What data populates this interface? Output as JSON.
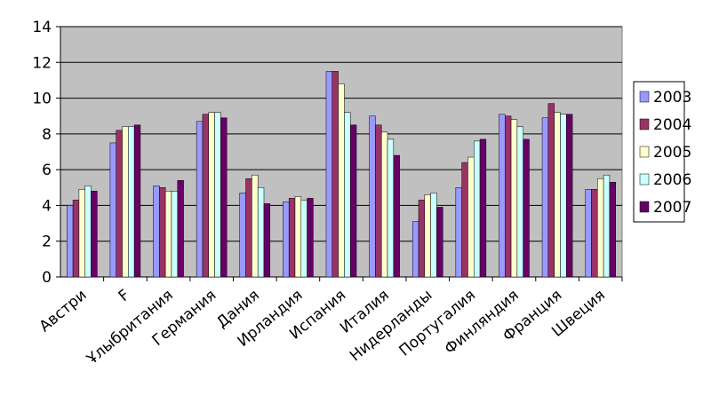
{
  "chart_data": {
    "type": "bar",
    "categories": [
      "Австри",
      "F",
      "Ұлыбритания",
      "Германия",
      "Дания",
      "Ирландия",
      "Испания",
      "Италия",
      "Нидерланды",
      "Португалия",
      "Финляндия",
      "Франция",
      "Швеция"
    ],
    "series": [
      {
        "name": "2003",
        "color": "#9999ff",
        "values": [
          4.0,
          7.5,
          5.1,
          8.7,
          4.7,
          4.2,
          11.5,
          9.0,
          3.1,
          5.0,
          9.1,
          8.9,
          4.9
        ]
      },
      {
        "name": "2004",
        "color": "#993366",
        "values": [
          4.3,
          8.2,
          5.0,
          9.1,
          5.5,
          4.4,
          11.5,
          8.5,
          4.3,
          6.4,
          9.0,
          9.7,
          4.9
        ]
      },
      {
        "name": "2005",
        "color": "#ffffcc",
        "values": [
          4.9,
          8.4,
          4.8,
          9.2,
          5.7,
          4.5,
          10.8,
          8.1,
          4.6,
          6.7,
          8.8,
          9.2,
          5.5
        ]
      },
      {
        "name": "2006",
        "color": "#ccffff",
        "values": [
          5.1,
          8.4,
          4.8,
          9.2,
          5.0,
          4.3,
          9.2,
          7.7,
          4.7,
          7.6,
          8.4,
          9.1,
          5.7
        ]
      },
      {
        "name": "2007",
        "color": "#660066",
        "values": [
          4.8,
          8.5,
          5.4,
          8.9,
          4.1,
          4.4,
          8.5,
          6.8,
          3.9,
          7.7,
          7.7,
          9.1,
          5.3
        ]
      }
    ],
    "ylim": [
      0,
      14
    ],
    "yticks": [
      0,
      2,
      4,
      6,
      8,
      10,
      12,
      14
    ],
    "grid": true,
    "legend": "right"
  }
}
